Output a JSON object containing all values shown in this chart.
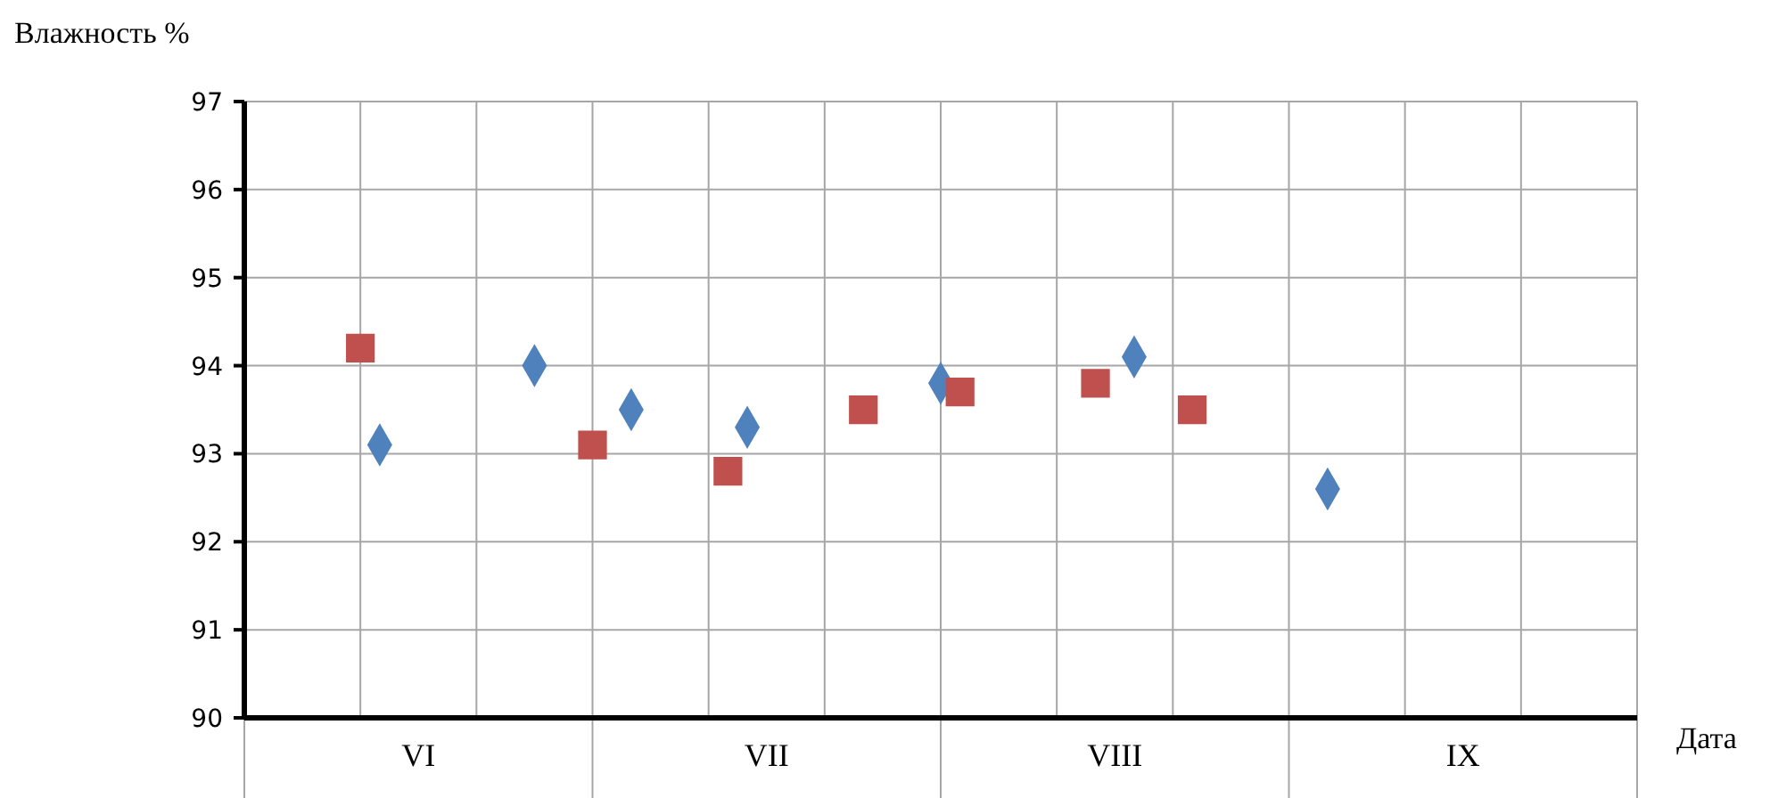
{
  "chart_data": {
    "type": "scatter",
    "ylabel": "Влажность %",
    "xlabel": "Дата",
    "categories": [
      null,
      null,
      null,
      null,
      null,
      null,
      null,
      null,
      null,
      "VI",
      null,
      null,
      null,
      null,
      null,
      null,
      null,
      null,
      null,
      null,
      null,
      null,
      null,
      null,
      null,
      null,
      null,
      "VII",
      null,
      null,
      null,
      null,
      null,
      null,
      null,
      null,
      null,
      null,
      null,
      null,
      null,
      null,
      null,
      null,
      null,
      "VIII",
      null,
      null,
      null,
      null,
      null,
      null,
      null,
      null,
      null,
      null,
      null,
      null,
      null,
      null,
      null,
      null,
      null,
      "IX",
      null,
      null,
      null,
      null,
      null,
      null,
      null,
      null,
      null
    ],
    "ylim": [
      90,
      97
    ],
    "yticks": [
      90,
      91,
      92,
      93,
      94,
      95,
      96,
      97
    ],
    "grid": true,
    "series": [
      {
        "color": "#4f81bd",
        "marker": "diamond",
        "values": [
          null,
          null,
          null,
          null,
          null,
          null,
          null,
          93.1,
          null,
          null,
          null,
          null,
          null,
          null,
          null,
          94.0,
          null,
          null,
          null,
          null,
          93.5,
          null,
          null,
          null,
          null,
          null,
          93.3,
          null,
          null,
          null,
          null,
          null,
          null,
          null,
          null,
          null,
          93.8,
          null,
          null,
          null,
          null,
          null,
          null,
          null,
          null,
          null,
          94.1,
          null,
          null,
          null,
          null,
          null,
          null,
          null,
          null,
          null,
          92.6,
          null,
          null,
          null,
          null,
          null,
          null,
          null,
          null,
          null,
          null,
          null,
          null,
          null,
          null,
          null,
          null
        ]
      },
      {
        "color": "#c0504d",
        "marker": "square",
        "values": [
          null,
          null,
          null,
          null,
          null,
          null,
          94.2,
          null,
          null,
          null,
          null,
          null,
          null,
          null,
          null,
          null,
          null,
          null,
          93.1,
          null,
          null,
          null,
          null,
          null,
          null,
          92.8,
          null,
          null,
          null,
          null,
          null,
          null,
          93.5,
          null,
          null,
          null,
          null,
          93.7,
          null,
          null,
          null,
          null,
          null,
          null,
          93.8,
          null,
          null,
          null,
          null,
          93.5,
          null,
          null,
          null,
          null,
          null,
          null,
          null,
          null,
          null,
          null,
          null,
          null,
          null,
          null,
          null,
          null,
          null,
          null,
          null,
          null,
          null,
          null,
          null
        ]
      }
    ]
  }
}
